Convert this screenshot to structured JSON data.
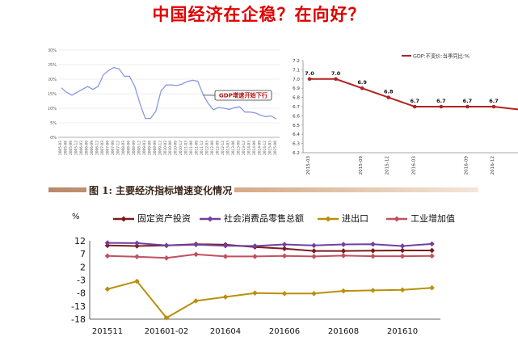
{
  "page": {
    "title": "中国经济在企稳？在向好？",
    "caption": "图 1:  主要经济指标增速变化情况"
  },
  "chart_data": [
    {
      "type": "line",
      "title": "",
      "ylim": [
        0,
        30
      ],
      "yticks": [
        "0%",
        "5%",
        "10%",
        "15%",
        "20%",
        "25%",
        "30%"
      ],
      "grid": true,
      "x_labels": [
        "2005-03",
        "2005-06",
        "2005-09",
        "2005-12",
        "2006-03",
        "2006-06",
        "2006-09",
        "2006-12",
        "2007-03",
        "2007-06",
        "2007-09",
        "2007-12",
        "2008-03",
        "2008-06",
        "2008-09",
        "2008-12",
        "2009-03",
        "2009-06",
        "2009-09",
        "2009-12",
        "2010-03",
        "2010-06",
        "2010-09",
        "2010-12",
        "2011-03",
        "2011-06",
        "2011-09",
        "2011-12",
        "2012-03",
        "2012-06",
        "2012-09",
        "2012-12",
        "2013-03",
        "2013-06",
        "2013-09",
        "2013-12",
        "2014-03",
        "2014-06",
        "2014-09",
        "2014-12",
        "2015-03",
        "2015-06"
      ],
      "series": [
        {
          "name": "",
          "color": "#8b97e6",
          "values": [
            17.0,
            15.5,
            14.5,
            15.5,
            16.5,
            17.5,
            16.5,
            17.5,
            21.5,
            23.0,
            24.0,
            23.5,
            21.0,
            21.0,
            17.5,
            11.5,
            6.5,
            6.5,
            9.0,
            16.0,
            18.0,
            18.0,
            17.8,
            18.3,
            19.2,
            19.6,
            19.3,
            14.8,
            11.6,
            9.5,
            10.3,
            10.0,
            9.6,
            10.2,
            10.5,
            8.7,
            8.7,
            8.4,
            7.6,
            7.1,
            7.4,
            6.3
          ]
        }
      ],
      "annotation": "GDP增速开始下行"
    },
    {
      "type": "line",
      "title": "",
      "ylim": [
        6.2,
        7.2
      ],
      "yticks": [
        "6.2",
        "6.3",
        "6.4",
        "6.5",
        "6.6",
        "6.7",
        "6.8",
        "6.9",
        "7.0",
        "7.1",
        "7.2"
      ],
      "legend": "GDP:不变价:当季同比:%",
      "legend_position": "top-right",
      "categories": [
        "2015-03",
        "2015-06",
        "2015-09",
        "2015-12",
        "2016-03",
        "2016-06",
        "2016-09",
        "2016-12"
      ],
      "x_labels": [
        "2015-03",
        "2015-09",
        "2015-12",
        "2016-03",
        "2016-09",
        "2016-12"
      ],
      "series": [
        {
          "name": "GDP:不变价:当季同比:%",
          "color": "#b22222",
          "values": [
            7.0,
            7.0,
            6.9,
            6.8,
            6.7,
            6.7,
            6.7,
            6.7
          ],
          "labels": [
            "7.0",
            "7.0",
            "6.9",
            "6.8",
            "6.7",
            "6.7",
            "6.7",
            "6.7"
          ]
        }
      ]
    },
    {
      "type": "line",
      "title": "",
      "ylabel": "%",
      "ylim": [
        -18,
        12
      ],
      "yticks": [
        "12",
        "7",
        "2",
        "-3",
        "-8",
        "-13",
        "-18"
      ],
      "x_labels": [
        "201511",
        "201601-02",
        "201604",
        "201606",
        "201608",
        "201610"
      ],
      "legend_position": "top",
      "categories": [
        "201511",
        "201512",
        "201601-02",
        "201603",
        "201604",
        "201605",
        "201606",
        "201607",
        "201608",
        "201609",
        "201610",
        "201611"
      ],
      "series": [
        {
          "name": "固定资产投资",
          "color": "#7b1c1c",
          "values": [
            10.2,
            10.0,
            10.2,
            10.7,
            10.5,
            9.6,
            9.0,
            8.1,
            8.1,
            8.2,
            8.3,
            8.3
          ]
        },
        {
          "name": "社会消费品零售总额",
          "color": "#7040a0",
          "values": [
            11.2,
            11.1,
            10.2,
            10.5,
            10.1,
            10.0,
            10.6,
            10.2,
            10.6,
            10.7,
            10.0,
            10.8
          ]
        },
        {
          "name": "进出口",
          "color": "#b8900a",
          "values": [
            -6.5,
            -3.5,
            -17.5,
            -11.0,
            -9.5,
            -8.0,
            -8.2,
            -8.2,
            -7.2,
            -7.0,
            -6.8,
            -6.0
          ]
        },
        {
          "name": "工业增加值",
          "color": "#c05060",
          "values": [
            6.2,
            5.9,
            5.4,
            6.8,
            6.0,
            6.0,
            6.2,
            6.0,
            6.3,
            6.1,
            6.1,
            6.2
          ]
        }
      ]
    }
  ]
}
